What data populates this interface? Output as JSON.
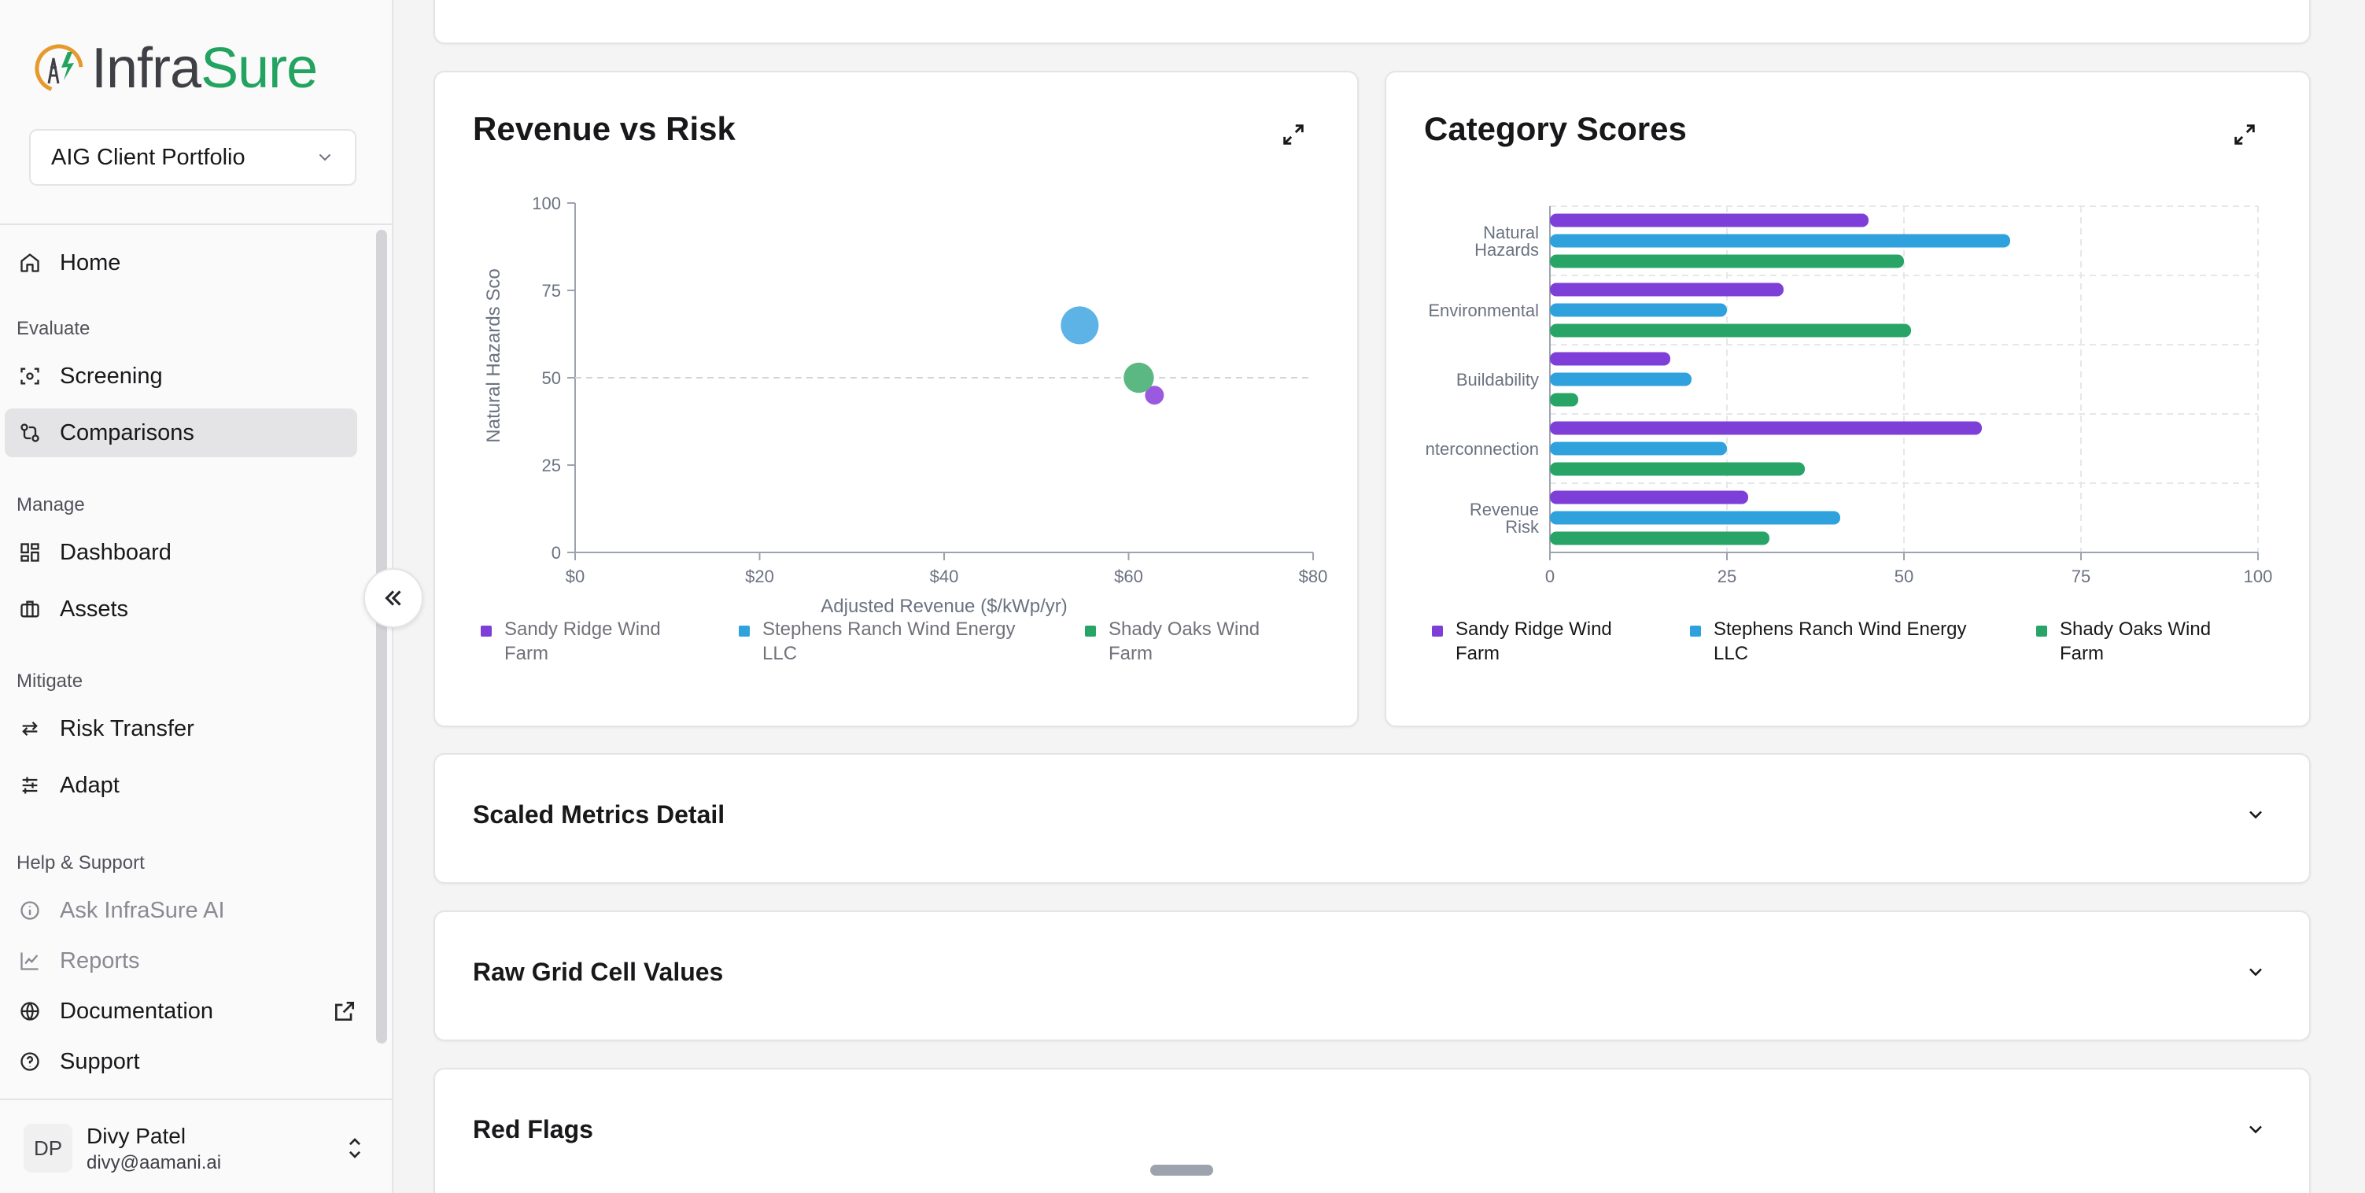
{
  "app": {
    "logo_infra": "Infra",
    "logo_sure": "Sure",
    "portfolio": "AIG Client Portfolio"
  },
  "sidebar": {
    "home": "Home",
    "sections": {
      "evaluate": "Evaluate",
      "manage": "Manage",
      "mitigate": "Mitigate",
      "help": "Help & Support"
    },
    "items": {
      "screening": "Screening",
      "comparisons": "Comparisons",
      "dashboard": "Dashboard",
      "assets": "Assets",
      "risk_transfer": "Risk Transfer",
      "adapt": "Adapt",
      "ask_ai": "Ask InfraSure AI",
      "reports": "Reports",
      "documentation": "Documentation",
      "support": "Support"
    },
    "user": {
      "initials": "DP",
      "name": "Divy Patel",
      "email": "divy@aamani.ai"
    }
  },
  "colors": {
    "purple": "#7e3fd8",
    "blue": "#2fa1dc",
    "green": "#28a466",
    "accent": "#22a35f"
  },
  "revenue_vs_risk": {
    "title": "Revenue vs Risk",
    "chart_data": {
      "type": "scatter",
      "xlabel": "Adjusted Revenue ($/kWp/yr)",
      "ylabel": "Natural Hazards Sco",
      "xlim": [
        0,
        80
      ],
      "ylim": [
        0,
        100
      ],
      "x_ticks": [
        "$0",
        "$20",
        "$40",
        "$60",
        "$80"
      ],
      "y_ticks": [
        "0",
        "25",
        "50",
        "75",
        "100"
      ],
      "reference_line_y": 50,
      "series": [
        {
          "name": "Sandy Ridge Wind Farm",
          "x": 62.8,
          "y": 45,
          "color": "#9b59e0",
          "size": 1
        },
        {
          "name": "Stephens Ranch Wind Energy LLC",
          "x": 54.7,
          "y": 65,
          "color": "#5db3e6",
          "size": 2
        },
        {
          "name": "Shady Oaks Wind Farm",
          "x": 61.1,
          "y": 50,
          "color": "#5cb883",
          "size": 1.6
        }
      ],
      "legend": [
        {
          "line1": "Sandy Ridge Wind",
          "line2": "Farm",
          "color": "#7e3fd8"
        },
        {
          "line1": "Stephens Ranch Wind Energy",
          "line2": "LLC",
          "color": "#2fa1dc"
        },
        {
          "line1": "Shady Oaks Wind",
          "line2": "Farm",
          "color": "#28a466"
        }
      ]
    }
  },
  "category_scores": {
    "title": "Category Scores",
    "chart_data": {
      "type": "bar",
      "orientation": "horizontal",
      "xlim": [
        0,
        100
      ],
      "x_ticks": [
        "0",
        "25",
        "50",
        "75",
        "100"
      ],
      "categories": [
        [
          "Natural",
          "Hazards"
        ],
        [
          "Environmental"
        ],
        [
          "Buildability"
        ],
        [
          "Interconnection"
        ],
        [
          "Revenue",
          "Risk"
        ]
      ],
      "series": [
        {
          "name": "Sandy Ridge Wind Farm",
          "color": "#7e3fd8",
          "values": [
            45,
            33,
            17,
            61,
            28
          ]
        },
        {
          "name": "Stephens Ranch Wind Energy LLC",
          "color": "#2fa1dc",
          "values": [
            65,
            25,
            20,
            25,
            41
          ]
        },
        {
          "name": "Shady Oaks Wind Farm",
          "color": "#28a466",
          "values": [
            50,
            51,
            4,
            36,
            31
          ]
        }
      ],
      "legend": [
        {
          "line1": "Sandy Ridge Wind",
          "line2": "Farm",
          "color": "#7e3fd8"
        },
        {
          "line1": "Stephens Ranch Wind Energy",
          "line2": "LLC",
          "color": "#2fa1dc"
        },
        {
          "line1": "Shady Oaks Wind",
          "line2": "Farm",
          "color": "#28a466"
        }
      ]
    }
  },
  "sections": {
    "scaled": "Scaled Metrics Detail",
    "raw": "Raw Grid Cell Values",
    "red_flags": "Red Flags"
  }
}
